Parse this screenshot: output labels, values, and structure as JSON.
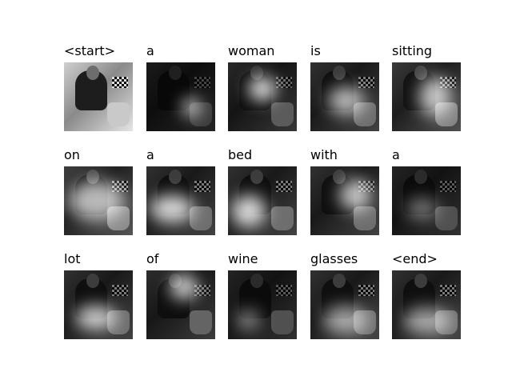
{
  "tokens": [
    "<start>",
    "a",
    "woman",
    "is",
    "sitting",
    "on",
    "a",
    "bed",
    "with",
    "a",
    "lot",
    "of",
    "wine",
    "glasses",
    "<end>"
  ]
}
